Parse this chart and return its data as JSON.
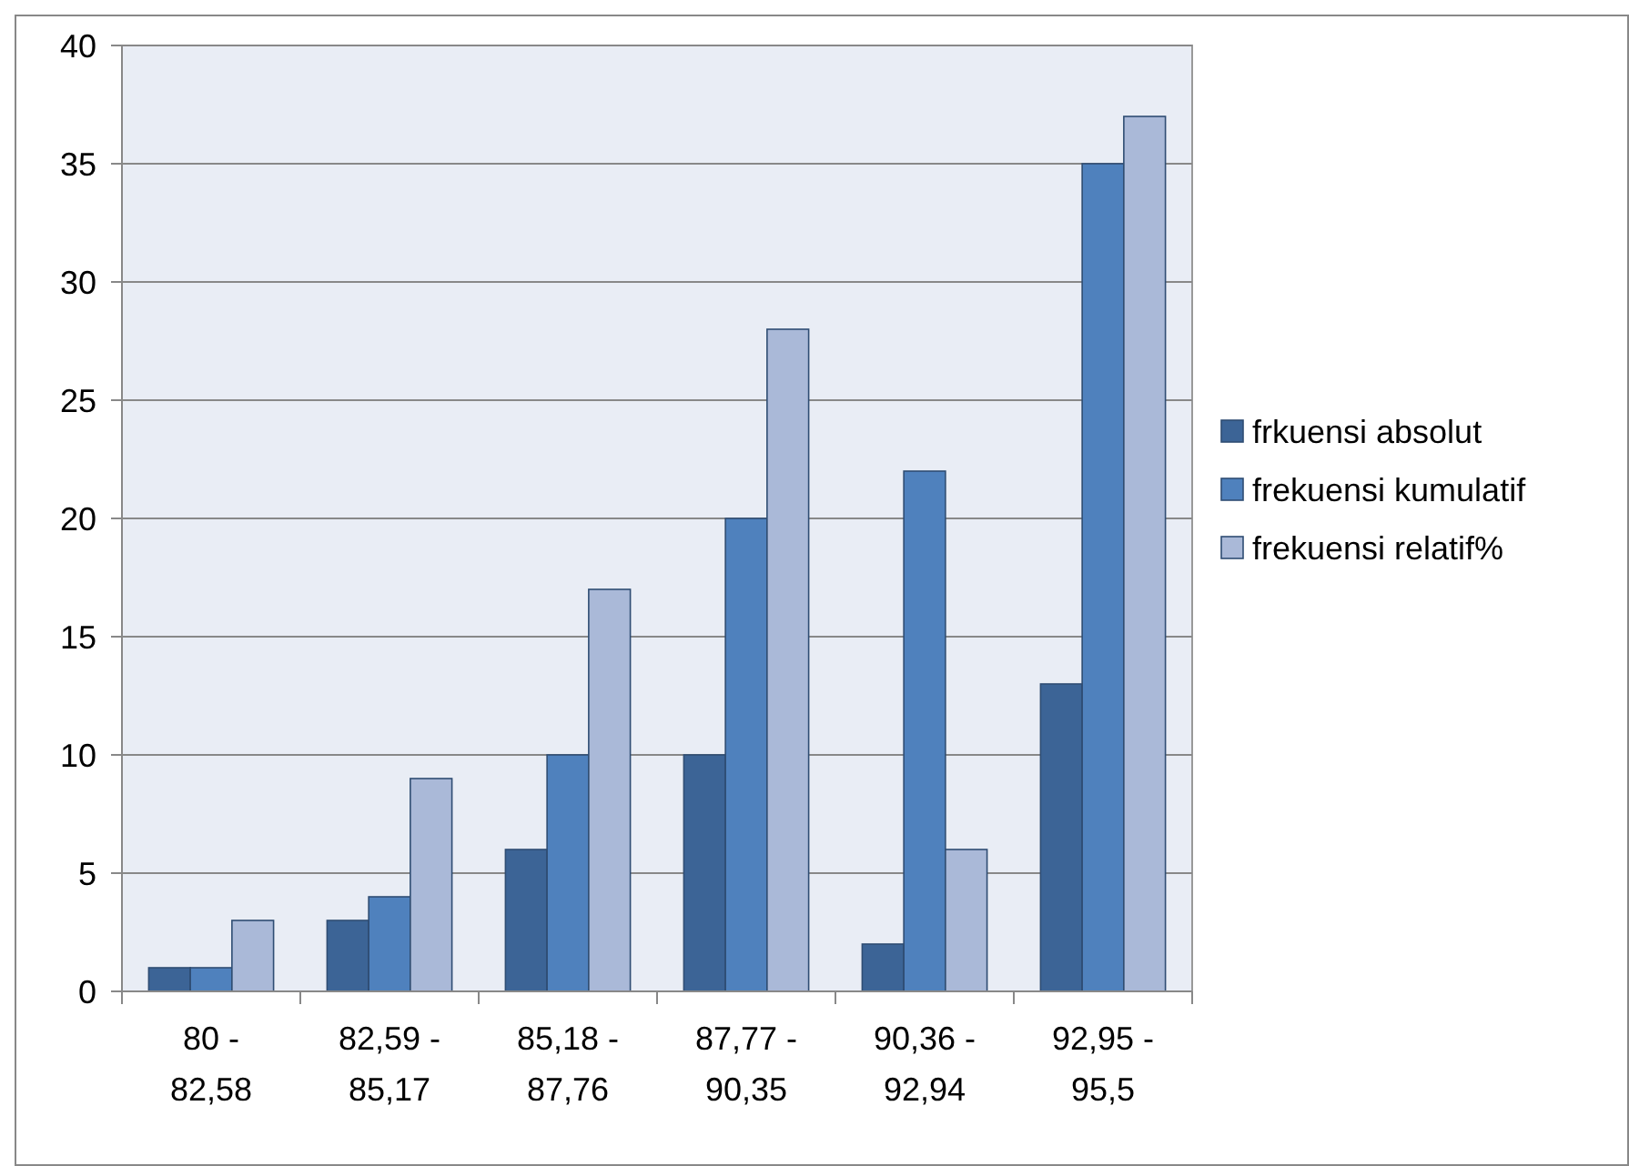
{
  "chart_data": {
    "type": "bar",
    "categories": [
      "80 - 82,58",
      "82,59 - 85,17",
      "85,18 - 87,76",
      "87,77 - 90,35",
      "90,36 - 92,94",
      "92,95 - 95,5"
    ],
    "series": [
      {
        "name": "frkuensi absolut",
        "color": "#3c6496",
        "values": [
          1,
          3,
          6,
          10,
          2,
          13
        ]
      },
      {
        "name": "frekuensi kumulatif",
        "color": "#4f81bd",
        "values": [
          1,
          4,
          10,
          20,
          22,
          35
        ]
      },
      {
        "name": "frekuensi relatif%",
        "color": "#aab9d8",
        "values": [
          3,
          9,
          17,
          28,
          6,
          37
        ]
      }
    ],
    "ylim": [
      0,
      40
    ],
    "yticks": [
      0,
      5,
      10,
      15,
      20,
      25,
      30,
      35,
      40
    ],
    "grid": "y",
    "legend": "right"
  }
}
